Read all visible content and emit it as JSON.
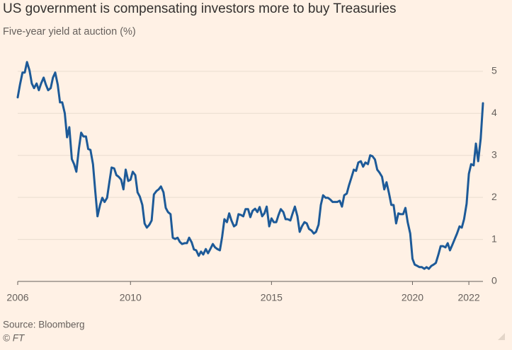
{
  "chart_data": {
    "type": "line",
    "title": "US government is compensating investors more to buy Treasuries",
    "subtitle": "Five-year yield at auction (%)",
    "source": "Source: Bloomberg",
    "credit": "© FT",
    "x": [
      2006.0,
      2006.08,
      2006.17,
      2006.25,
      2006.33,
      2006.42,
      2006.5,
      2006.58,
      2006.67,
      2006.75,
      2006.83,
      2006.92,
      2007.0,
      2007.08,
      2007.17,
      2007.25,
      2007.33,
      2007.42,
      2007.5,
      2007.58,
      2007.67,
      2007.75,
      2007.83,
      2007.92,
      2008.0,
      2008.08,
      2008.17,
      2008.25,
      2008.33,
      2008.42,
      2008.5,
      2008.58,
      2008.67,
      2008.75,
      2008.83,
      2008.92,
      2009.0,
      2009.08,
      2009.17,
      2009.25,
      2009.33,
      2009.42,
      2009.5,
      2009.58,
      2009.67,
      2009.75,
      2009.83,
      2009.92,
      2010.0,
      2010.08,
      2010.17,
      2010.25,
      2010.33,
      2010.42,
      2010.5,
      2010.58,
      2010.67,
      2010.75,
      2010.83,
      2010.92,
      2011.0,
      2011.08,
      2011.17,
      2011.25,
      2011.33,
      2011.42,
      2011.5,
      2011.58,
      2011.67,
      2011.75,
      2011.83,
      2011.92,
      2012.0,
      2012.08,
      2012.17,
      2012.25,
      2012.33,
      2012.42,
      2012.5,
      2012.58,
      2012.67,
      2012.75,
      2012.83,
      2012.92,
      2013.0,
      2013.08,
      2013.17,
      2013.25,
      2013.33,
      2013.42,
      2013.5,
      2013.58,
      2013.67,
      2013.75,
      2013.83,
      2013.92,
      2014.0,
      2014.08,
      2014.17,
      2014.25,
      2014.33,
      2014.42,
      2014.5,
      2014.58,
      2014.67,
      2014.75,
      2014.83,
      2014.92,
      2015.0,
      2015.08,
      2015.17,
      2015.25,
      2015.33,
      2015.42,
      2015.5,
      2015.58,
      2015.67,
      2015.75,
      2015.83,
      2015.92,
      2016.0,
      2016.08,
      2016.17,
      2016.25,
      2016.33,
      2016.42,
      2016.5,
      2016.58,
      2016.67,
      2016.75,
      2016.83,
      2016.92,
      2017.0,
      2017.08,
      2017.17,
      2017.25,
      2017.33,
      2017.42,
      2017.5,
      2017.58,
      2017.67,
      2017.75,
      2017.83,
      2017.92,
      2018.0,
      2018.08,
      2018.17,
      2018.25,
      2018.33,
      2018.42,
      2018.5,
      2018.58,
      2018.67,
      2018.75,
      2018.83,
      2018.92,
      2019.0,
      2019.08,
      2019.17,
      2019.25,
      2019.33,
      2019.42,
      2019.5,
      2019.58,
      2019.67,
      2019.75,
      2019.83,
      2019.92,
      2020.0,
      2020.08,
      2020.17,
      2020.25,
      2020.33,
      2020.42,
      2020.5,
      2020.58,
      2020.67,
      2020.75,
      2020.83,
      2020.92,
      2021.0,
      2021.08,
      2021.17,
      2021.25,
      2021.33,
      2021.42,
      2021.5,
      2021.58,
      2021.67,
      2021.75,
      2021.83,
      2021.92,
      2022.0,
      2022.08,
      2022.17,
      2022.25,
      2022.33,
      2022.42,
      2022.5
    ],
    "series": [
      {
        "color": "#1d5a98",
        "values": [
          4.38,
          4.68,
          4.97,
          4.97,
          5.22,
          5.02,
          4.71,
          4.6,
          4.71,
          4.55,
          4.71,
          4.85,
          4.68,
          4.55,
          4.6,
          4.85,
          4.97,
          4.68,
          4.26,
          4.26,
          4.0,
          3.43,
          3.67,
          2.91,
          2.79,
          2.61,
          3.16,
          3.54,
          3.45,
          3.45,
          3.15,
          3.13,
          2.79,
          2.15,
          1.55,
          1.82,
          1.99,
          1.89,
          1.99,
          2.36,
          2.71,
          2.69,
          2.53,
          2.49,
          2.42,
          2.19,
          2.66,
          2.39,
          2.42,
          2.61,
          2.53,
          2.12,
          2.02,
          1.82,
          1.38,
          1.28,
          1.35,
          1.45,
          2.07,
          2.15,
          2.19,
          2.26,
          2.12,
          1.75,
          1.65,
          1.6,
          1.04,
          1.01,
          1.04,
          0.94,
          0.89,
          0.91,
          0.91,
          1.04,
          0.93,
          0.76,
          0.74,
          0.61,
          0.71,
          0.64,
          0.77,
          0.67,
          0.77,
          0.89,
          0.81,
          0.77,
          0.74,
          1.06,
          1.48,
          1.41,
          1.62,
          1.45,
          1.31,
          1.35,
          1.6,
          1.58,
          1.55,
          1.72,
          1.72,
          1.53,
          1.68,
          1.73,
          1.65,
          1.77,
          1.55,
          1.62,
          1.78,
          1.31,
          1.5,
          1.41,
          1.41,
          1.58,
          1.72,
          1.65,
          1.48,
          1.48,
          1.45,
          1.62,
          1.78,
          1.55,
          1.18,
          1.31,
          1.41,
          1.38,
          1.25,
          1.21,
          1.14,
          1.18,
          1.35,
          1.82,
          2.05,
          1.99,
          1.99,
          1.95,
          1.89,
          1.89,
          1.89,
          1.92,
          1.78,
          2.05,
          2.09,
          2.29,
          2.46,
          2.66,
          2.63,
          2.83,
          2.86,
          2.73,
          2.83,
          2.79,
          3.0,
          2.98,
          2.9,
          2.66,
          2.59,
          2.49,
          2.19,
          2.36,
          2.09,
          1.82,
          1.82,
          1.38,
          1.62,
          1.6,
          1.6,
          1.75,
          1.41,
          1.14,
          0.54,
          0.4,
          0.37,
          0.34,
          0.34,
          0.3,
          0.34,
          0.3,
          0.37,
          0.4,
          0.44,
          0.64,
          0.84,
          0.84,
          0.81,
          0.91,
          0.74,
          0.88,
          1.01,
          1.14,
          1.31,
          1.28,
          1.48,
          1.85,
          2.56,
          2.79,
          2.76,
          3.28,
          2.86,
          3.4,
          4.24
        ]
      }
    ],
    "xlim": [
      2006,
      2022.5
    ],
    "xticks": [
      2006,
      2010,
      2015,
      2020,
      2022
    ],
    "ylim": [
      0,
      5.3
    ],
    "yticks": [
      0,
      1,
      2,
      3,
      4,
      5
    ],
    "grid": true
  }
}
